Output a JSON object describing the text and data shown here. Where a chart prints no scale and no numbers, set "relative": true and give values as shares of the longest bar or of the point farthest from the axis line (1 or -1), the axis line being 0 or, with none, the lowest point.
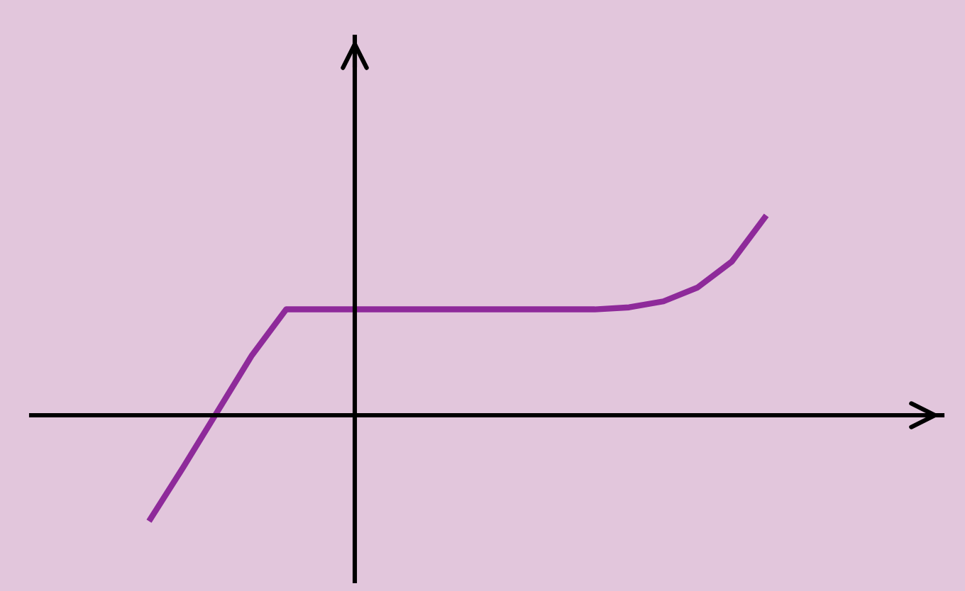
{
  "chart_data": {
    "type": "line",
    "relative": true,
    "categories": [
      null,
      null,
      null,
      null,
      null,
      null,
      null,
      null,
      null,
      null,
      null,
      null,
      null,
      null,
      null,
      null,
      null,
      null,
      null
    ],
    "series": [
      {
        "color": "#8e2a9a",
        "values": [
          -0.53,
          -0.26,
          0.02,
          0.3,
          0.53,
          0.53,
          0.53,
          0.53,
          0.53,
          0.53,
          0.53,
          0.53,
          0.53,
          0.53,
          0.54,
          0.57,
          0.64,
          0.77,
          1
        ]
      }
    ],
    "marker": "none",
    "line_style": "solid",
    "grid": false
  }
}
